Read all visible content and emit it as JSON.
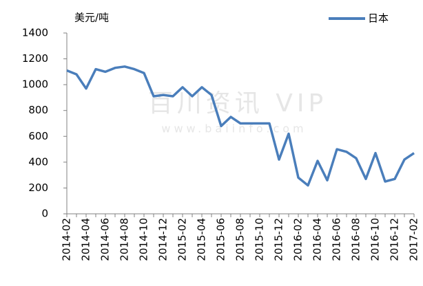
{
  "chart_data": {
    "type": "line",
    "y_label": "美元/吨",
    "watermark": "百川资讯 VIP",
    "watermark_url": "www.baiinfo.com",
    "categories": [
      "2014-02",
      null,
      "2014-04",
      null,
      "2014-06",
      null,
      "2014-08",
      null,
      "2014-10",
      null,
      "2014-12",
      null,
      "2015-02",
      null,
      "2015-04",
      null,
      "2015-06",
      null,
      "2015-08",
      null,
      "2015-10",
      null,
      "2015-12",
      null,
      "2016-02",
      null,
      "2016-04",
      null,
      "2016-06",
      null,
      "2016-08",
      null,
      "2016-10",
      null,
      "2016-12",
      null,
      "2017-02"
    ],
    "series": [
      {
        "name": "日本",
        "color": "#4a7ebb",
        "values": [
          1110,
          1080,
          970,
          1120,
          1100,
          1130,
          1140,
          1120,
          1090,
          910,
          920,
          910,
          980,
          910,
          980,
          920,
          680,
          750,
          700,
          700,
          700,
          700,
          420,
          620,
          280,
          220,
          410,
          260,
          500,
          480,
          430,
          270,
          470,
          250,
          270,
          420,
          470
        ]
      }
    ],
    "ylim": [
      0,
      1400
    ],
    "yticks": [
      0,
      200,
      400,
      600,
      800,
      1000,
      1200,
      1400
    ],
    "grid": false,
    "legend": "top-right"
  }
}
